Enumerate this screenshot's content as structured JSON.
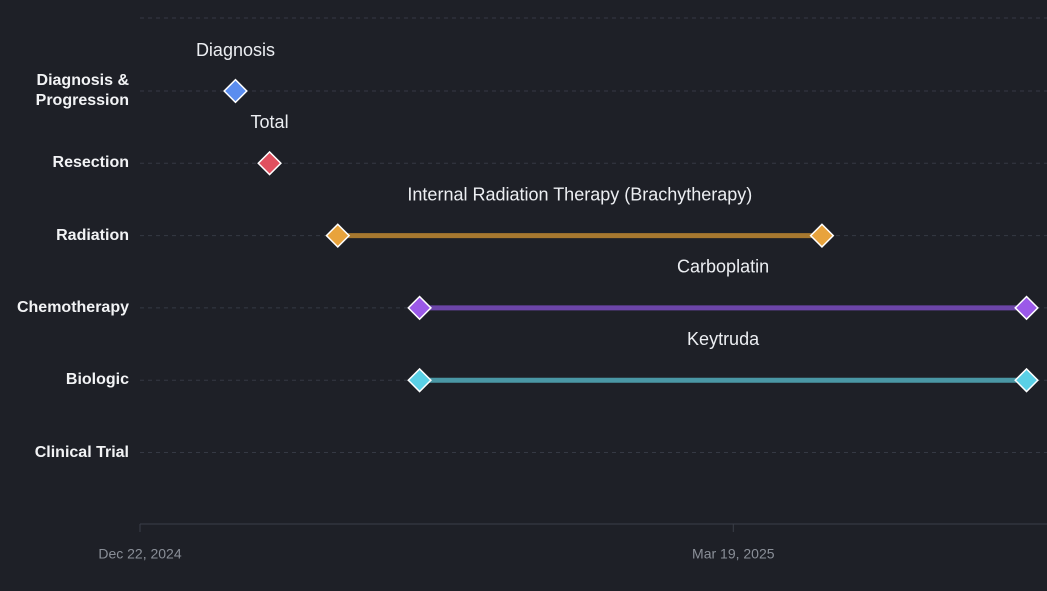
{
  "chart_data": {
    "type": "timeline",
    "categories": [
      "Diagnosis & Progression",
      "Resection",
      "Radiation",
      "Chemotherapy",
      "Biologic",
      "Clinical Trial"
    ],
    "items": [
      {
        "category": 0,
        "label": "Diagnosis",
        "start": "2025-01-05",
        "end": null,
        "color": "#5b8def",
        "line_color": null
      },
      {
        "category": 1,
        "label": "Total",
        "start": "2025-01-10",
        "end": null,
        "color": "#e0505f",
        "line_color": null
      },
      {
        "category": 2,
        "label": "Internal Radiation Therapy (Brachytherapy)",
        "start": "2025-01-20",
        "end": "2025-04-01",
        "color": "#e8a33c",
        "line_color": "#a7782f"
      },
      {
        "category": 3,
        "label": "Carboplatin",
        "start": "2025-02-01",
        "end": "2025-05-01",
        "color": "#9b59e8",
        "line_color": "#6c45a8"
      },
      {
        "category": 4,
        "label": "Keytruda",
        "start": "2025-02-01",
        "end": "2025-05-01",
        "color": "#5ad0e6",
        "line_color": "#4a97a5"
      }
    ],
    "xlim": [
      "2024-12-22",
      "2025-05-04"
    ],
    "xticks": [
      {
        "value": "2024-12-22",
        "label": "Dec 22, 2024"
      },
      {
        "value": "2025-03-19",
        "label": "Mar 19, 2025"
      }
    ],
    "grid": true
  }
}
